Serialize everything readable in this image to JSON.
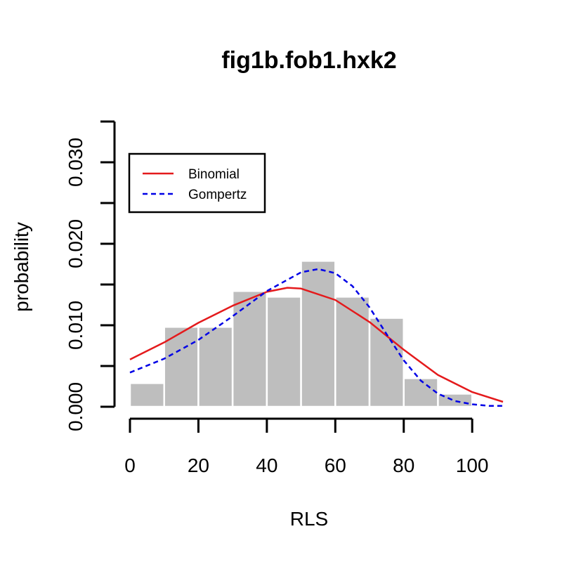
{
  "chart_data": {
    "type": "bar",
    "title": "fig1b.fob1.hxk2",
    "xlabel": "RLS",
    "ylabel": "probability",
    "xlim": [
      0,
      109
    ],
    "ylim": [
      0,
      0.035
    ],
    "x_ticks": [
      0,
      20,
      40,
      60,
      80,
      100
    ],
    "x_tick_labels": [
      "0",
      "20",
      "40",
      "60",
      "80",
      "100"
    ],
    "y_ticks": [
      0,
      0.005,
      0.01,
      0.015,
      0.02,
      0.025,
      0.03,
      0.035
    ],
    "y_tick_labels": [
      "0.000",
      "",
      "0.010",
      "",
      "0.020",
      "",
      "0.030",
      ""
    ],
    "bar_color": "#bebebe",
    "bins": [
      {
        "x0": 0,
        "x1": 10,
        "value": 0.0029
      },
      {
        "x0": 10,
        "x1": 20,
        "value": 0.0098
      },
      {
        "x0": 20,
        "x1": 30,
        "value": 0.0098
      },
      {
        "x0": 30,
        "x1": 40,
        "value": 0.0142
      },
      {
        "x0": 40,
        "x1": 50,
        "value": 0.0135
      },
      {
        "x0": 50,
        "x1": 60,
        "value": 0.0179
      },
      {
        "x0": 60,
        "x1": 70,
        "value": 0.0135
      },
      {
        "x0": 70,
        "x1": 80,
        "value": 0.0109
      },
      {
        "x0": 80,
        "x1": 90,
        "value": 0.0035
      },
      {
        "x0": 90,
        "x1": 100,
        "value": 0.0016
      }
    ],
    "series": [
      {
        "name": "Binomial",
        "color": "#e41a1c",
        "dash": "solid",
        "x": [
          0,
          10,
          20,
          30,
          40,
          46,
          50,
          60,
          70,
          80,
          90,
          100,
          109
        ],
        "values": [
          0.0058,
          0.0079,
          0.0103,
          0.0124,
          0.0141,
          0.0146,
          0.0145,
          0.0131,
          0.0104,
          0.007,
          0.0039,
          0.0018,
          0.0006
        ]
      },
      {
        "name": "Gompertz",
        "color": "#0000e6",
        "dash": "dashed",
        "x": [
          0,
          10,
          20,
          30,
          40,
          50,
          55,
          60,
          65,
          70,
          75,
          80,
          85,
          90,
          95,
          100,
          105,
          109
        ],
        "values": [
          0.0042,
          0.0059,
          0.0082,
          0.0111,
          0.0142,
          0.0165,
          0.0169,
          0.0164,
          0.0148,
          0.0122,
          0.0089,
          0.0057,
          0.0032,
          0.0016,
          0.0007,
          0.0003,
          0.0001,
          0.0001
        ]
      }
    ],
    "legend": {
      "placement": "top-left",
      "entries": [
        "Binomial",
        "Gompertz"
      ]
    }
  }
}
